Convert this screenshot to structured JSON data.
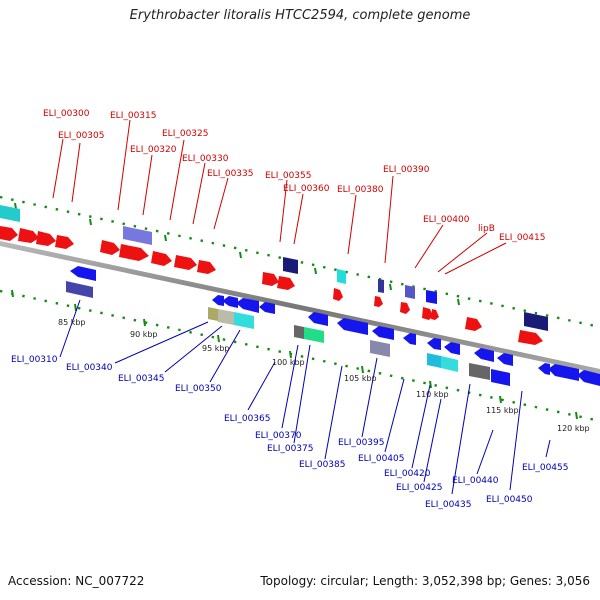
{
  "header": {
    "title": "Erythrobacter litoralis HTCC2594, complete genome"
  },
  "footer": {
    "accession": "Accession: NC_007722",
    "topology": "Topology: circular; Length: 3,052,398 bp; Genes: 3,056"
  },
  "colors": {
    "forward_gene": "#ee1111",
    "reverse_gene": "#1515ee",
    "backbone": "#888888",
    "label_top": "#d10000",
    "label_bottom": "#0000b4",
    "tick": "#138c13"
  },
  "scale_labels": [
    "85 kbp",
    "90 kbp",
    "95 kbp",
    "100 kbp",
    "105 kbp",
    "110 kbp",
    "115 kbp",
    "120 kbp"
  ],
  "genes_top": [
    "ELI_00300",
    "ELI_00305",
    "ELI_00315",
    "ELI_00320",
    "ELI_00325",
    "ELI_00330",
    "ELI_00335",
    "ELI_00355",
    "ELI_00360",
    "ELI_00380",
    "ELI_00390",
    "ELI_00400",
    "lipB",
    "ELI_00415"
  ],
  "genes_bottom": [
    "ELI_00310",
    "ELI_00340",
    "ELI_00345",
    "ELI_00350",
    "ELI_00365",
    "ELI_00370",
    "ELI_00375",
    "ELI_00385",
    "ELI_00395",
    "ELI_00405",
    "ELI_00420",
    "ELI_00425",
    "ELI_00435",
    "ELI_00440",
    "ELI_00450",
    "ELI_00455"
  ]
}
